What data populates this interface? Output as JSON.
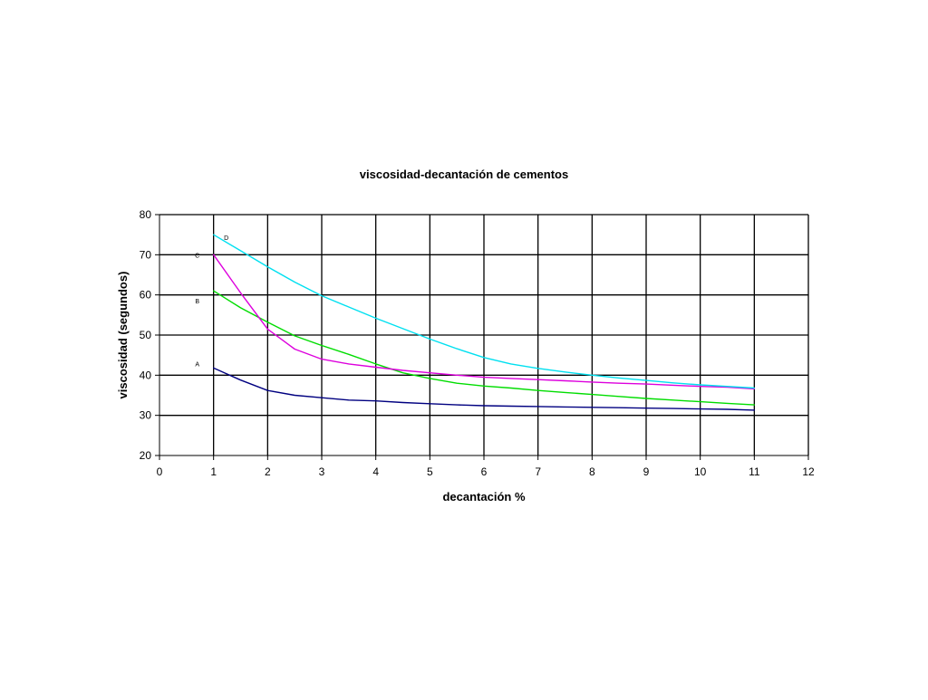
{
  "chart_data": {
    "type": "line",
    "title": "viscosidad-decantación de cementos",
    "xlabel": "decantación %",
    "ylabel": "viscosidad (segundos)",
    "xlim": [
      0,
      12
    ],
    "ylim": [
      20,
      80
    ],
    "x_ticks": [
      "0",
      "1",
      "2",
      "3",
      "4",
      "5",
      "6",
      "7",
      "8",
      "9",
      "10",
      "11",
      "12"
    ],
    "y_ticks": [
      "20",
      "30",
      "40",
      "50",
      "60",
      "70",
      "80"
    ],
    "grid": true,
    "legend": "none",
    "series": [
      {
        "name": "A",
        "color": "#000080",
        "x": [
          1,
          1.5,
          2,
          2.5,
          3,
          3.5,
          4,
          4.5,
          5,
          5.5,
          6,
          6.5,
          7,
          7.5,
          8,
          8.5,
          9,
          9.5,
          10,
          10.5,
          11
        ],
        "y": [
          41.8,
          38.8,
          36.2,
          35.0,
          34.4,
          33.8,
          33.6,
          33.2,
          32.9,
          32.6,
          32.4,
          32.3,
          32.2,
          32.1,
          32.0,
          31.9,
          31.8,
          31.7,
          31.6,
          31.5,
          31.3
        ]
      },
      {
        "name": "B",
        "color": "#00dd00",
        "x": [
          1,
          1.5,
          2,
          2.5,
          3,
          3.5,
          4,
          4.5,
          5,
          5.5,
          6,
          6.5,
          7,
          7.5,
          8,
          8.5,
          9,
          9.5,
          10,
          10.5,
          11
        ],
        "y": [
          61.0,
          56.8,
          53.2,
          49.8,
          47.4,
          45.2,
          42.8,
          40.6,
          39.2,
          38.0,
          37.3,
          36.8,
          36.2,
          35.7,
          35.2,
          34.7,
          34.2,
          33.8,
          33.4,
          33.0,
          32.6
        ]
      },
      {
        "name": "C",
        "color": "#dd00dd",
        "x": [
          1,
          1.5,
          2,
          2.5,
          3,
          3.5,
          4,
          4.5,
          5,
          5.5,
          6,
          6.5,
          7,
          7.5,
          8,
          8.5,
          9,
          9.5,
          10,
          10.5,
          11
        ],
        "y": [
          70.0,
          60.5,
          51.5,
          46.5,
          44.0,
          42.8,
          42.0,
          41.2,
          40.6,
          40.0,
          39.5,
          39.2,
          38.9,
          38.6,
          38.3,
          38.0,
          37.8,
          37.5,
          37.2,
          37.0,
          36.6
        ]
      },
      {
        "name": "D",
        "color": "#00e0f0",
        "x": [
          1,
          1.5,
          2,
          2.5,
          3,
          3.5,
          4,
          4.5,
          5,
          5.5,
          6,
          6.5,
          7,
          7.5,
          8,
          8.5,
          9,
          9.5,
          10,
          10.5,
          11
        ],
        "y": [
          75.0,
          71.0,
          67.0,
          63.2,
          59.8,
          57.0,
          54.2,
          51.6,
          49.0,
          46.6,
          44.4,
          42.8,
          41.7,
          40.8,
          40.0,
          39.3,
          38.7,
          38.1,
          37.6,
          37.2,
          36.8
        ]
      }
    ],
    "annotations": [
      {
        "text": "A",
        "series": "A"
      },
      {
        "text": "B",
        "series": "B"
      },
      {
        "text": "C",
        "series": "C"
      },
      {
        "text": "D",
        "series": "D"
      }
    ]
  }
}
